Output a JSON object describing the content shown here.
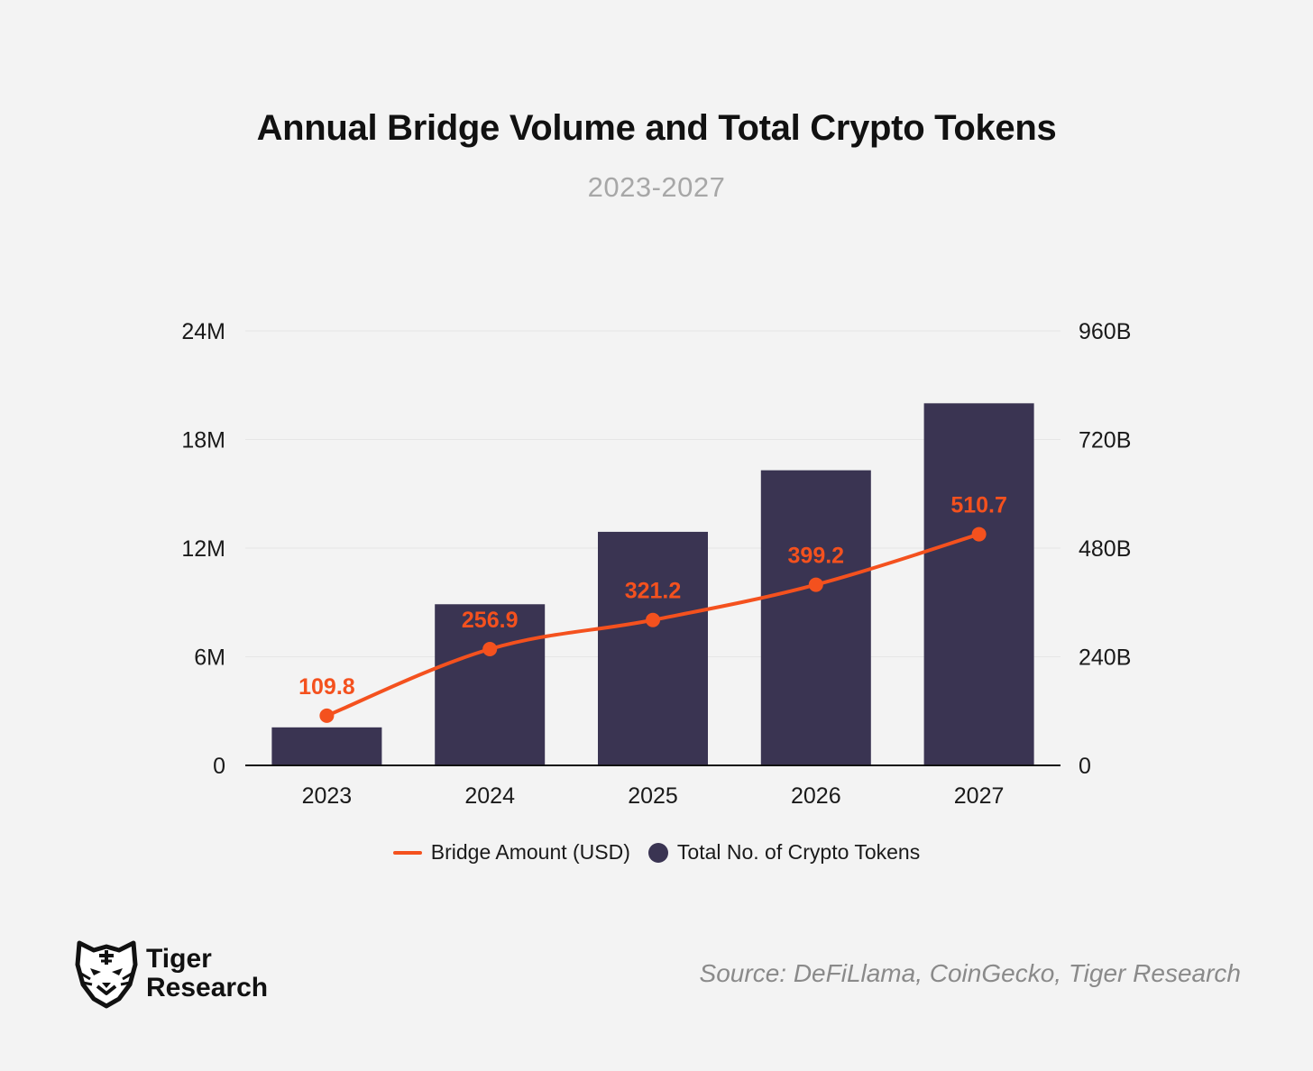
{
  "chart_data": {
    "type": "bar",
    "title": "Annual Bridge Volume and Total Crypto Tokens",
    "subtitle": "2023-2027",
    "categories": [
      "2023",
      "2024",
      "2025",
      "2026",
      "2027"
    ],
    "series": [
      {
        "name": "Total No. of Crypto Tokens",
        "type": "bar",
        "axis": "left",
        "values": [
          2100000,
          8900000,
          12900000,
          16300000,
          20000000
        ],
        "color": "#3a3452"
      },
      {
        "name": "Bridge Amount (USD)",
        "type": "line",
        "axis": "right",
        "values": [
          109.8,
          256.9,
          321.2,
          399.2,
          510.7
        ],
        "labels": [
          "109.8",
          "256.9",
          "321.2",
          "399.2",
          "510.7"
        ],
        "color": "#f4511e"
      }
    ],
    "y_left": {
      "ylim": [
        0,
        24000000
      ],
      "ticks": [
        0,
        6000000,
        12000000,
        18000000,
        24000000
      ],
      "tick_labels": [
        "0",
        "6M",
        "12M",
        "18M",
        "24M"
      ]
    },
    "y_right": {
      "ylim": [
        0,
        960
      ],
      "ticks": [
        0,
        240,
        480,
        720,
        960
      ],
      "tick_labels": [
        "0",
        "240B",
        "480B",
        "720B",
        "960B"
      ]
    },
    "grid": true,
    "legend": [
      {
        "label": "Bridge Amount (USD)",
        "marker": "line"
      },
      {
        "label": "Total No. of Crypto Tokens",
        "marker": "dot"
      }
    ],
    "legend_position": "bottom-center"
  },
  "footer": {
    "logo_line1": "Tiger",
    "logo_line2": "Research",
    "source": "Source: DeFiLlama, CoinGecko, Tiger Research"
  },
  "colors": {
    "background": "#f3f3f3",
    "bar": "#3a3452",
    "line": "#f4511e"
  },
  "icons": {
    "logo": "tiger-head-icon"
  }
}
